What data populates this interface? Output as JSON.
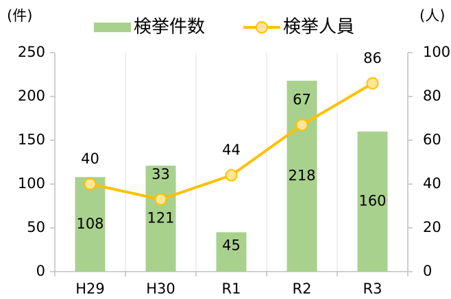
{
  "chart_data": {
    "type": "combo",
    "y_label": "(件)",
    "y2_label": "(人)",
    "categories": [
      "H29",
      "H30",
      "R1",
      "R2",
      "R3"
    ],
    "series": [
      {
        "name": "検挙件数",
        "type": "bar",
        "color": "#a9d18e",
        "values": [
          108,
          121,
          45,
          218,
          160
        ]
      },
      {
        "name": "検挙人員",
        "type": "line",
        "axis": "y2",
        "color": "#ffc000",
        "marker_fill": "#ffe699",
        "values": [
          40,
          33,
          44,
          67,
          86
        ]
      }
    ],
    "ylim": [
      0,
      250
    ],
    "yticks": [
      0,
      50,
      100,
      150,
      200,
      250
    ],
    "y2lim": [
      0,
      100
    ],
    "y2ticks": [
      0,
      20,
      40,
      60,
      80,
      100
    ],
    "legend": "top"
  }
}
